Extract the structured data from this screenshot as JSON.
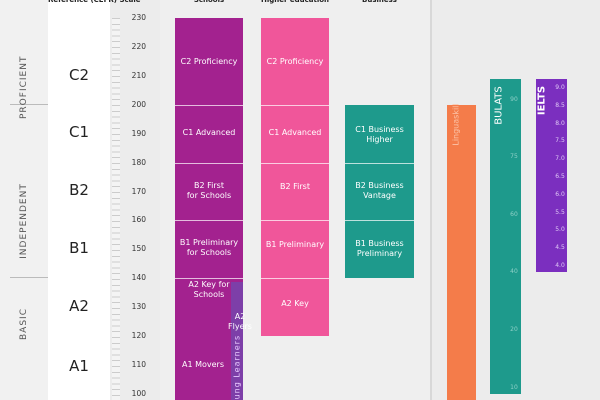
{
  "headers": [
    "Reference (CEFR)",
    "Scale",
    "Schools",
    "Higher education",
    "Business"
  ],
  "bands": [
    "PROFICIENT",
    "INDEPENDENT",
    "BASIC"
  ],
  "cefr_levels": [
    "C2",
    "C1",
    "B2",
    "B1",
    "A2",
    "A1"
  ],
  "scale_ticks": [
    230,
    220,
    210,
    200,
    190,
    180,
    170,
    160,
    150,
    140,
    130,
    120,
    110,
    100
  ],
  "schools": [
    [
      "C2 Proficiency"
    ],
    [
      "C1 Advanced"
    ],
    [
      "B2 First",
      "for Schools"
    ],
    [
      "B1 Preliminary",
      "for Schools"
    ],
    [
      "A2 Key for",
      "Schools"
    ]
  ],
  "young_learners": {
    "title": "Young Learners",
    "labels": [
      [
        "A2",
        "Flyers"
      ],
      [
        "A1 Movers"
      ]
    ]
  },
  "higher_education": [
    [
      "C2 Proficiency"
    ],
    [
      "C1 Advanced"
    ],
    [
      "B2 First"
    ],
    [
      "B1 Preliminary"
    ],
    [
      "A2 Key"
    ]
  ],
  "business": [
    [
      "C1 Business",
      "Higher"
    ],
    [
      "B2 Business",
      "Vantage"
    ],
    [
      "B1 Business",
      "Preliminary"
    ]
  ],
  "linguaskill": "Linguaskill",
  "bulats": {
    "title": "BULATS",
    "ticks": [
      90,
      75,
      60,
      40,
      20,
      10
    ]
  },
  "ielts": {
    "title": "IELTS",
    "ticks": [
      "9.0",
      "8.5",
      "8.0",
      "7.5",
      "7.0",
      "6.5",
      "6.0",
      "5.5",
      "5.0",
      "4.5",
      "4.0"
    ]
  }
}
